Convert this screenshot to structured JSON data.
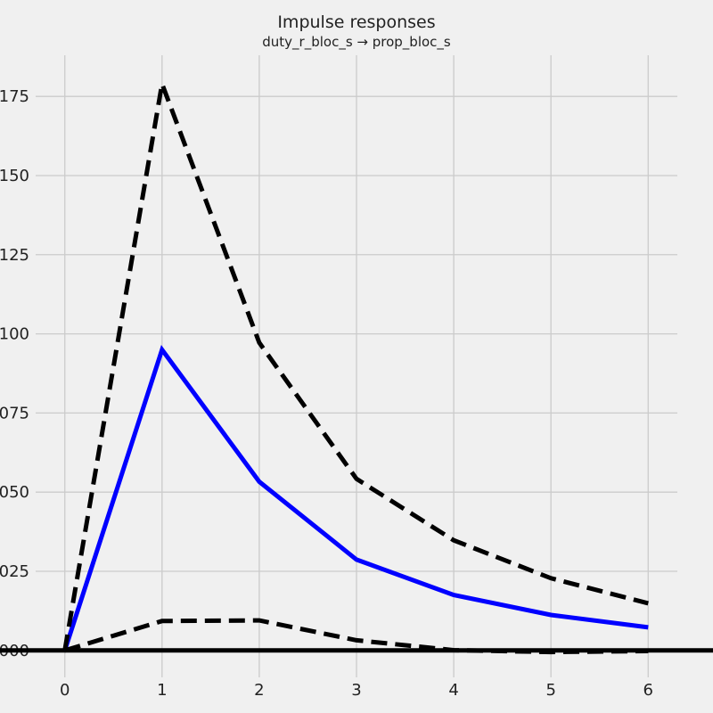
{
  "chart_data": {
    "type": "line",
    "title": "Impulse responses",
    "subtitle": "duty_r_bloc_s → prop_bloc_s",
    "x": [
      0,
      1,
      2,
      3,
      4,
      5,
      6
    ],
    "xticks": [
      "0",
      "1",
      "2",
      "3",
      "4",
      "5",
      "6"
    ],
    "yticks": [
      {
        "value": 0.0,
        "label": "000"
      },
      {
        "value": 0.025,
        "label": "025"
      },
      {
        "value": 0.05,
        "label": "050"
      },
      {
        "value": 0.075,
        "label": "075"
      },
      {
        "value": 0.1,
        "label": "100"
      },
      {
        "value": 0.125,
        "label": "125"
      },
      {
        "value": 0.15,
        "label": "150"
      },
      {
        "value": 0.175,
        "label": "175"
      }
    ],
    "xlim": [
      -0.3,
      6.3
    ],
    "ylim": [
      -0.0085,
      0.188
    ],
    "grid": true,
    "series": [
      {
        "role": "irf",
        "values": [
          0.0,
          0.095,
          0.0533,
          0.0287,
          0.0175,
          0.0112,
          0.0073
        ],
        "color": "#0000ff",
        "style": "solid"
      },
      {
        "role": "upper-band",
        "values": [
          0.0,
          0.179,
          0.0972,
          0.0542,
          0.0348,
          0.0228,
          0.0149
        ],
        "color": "#000000",
        "style": "dashed"
      },
      {
        "role": "lower-band",
        "values": [
          0.0,
          0.0093,
          0.0095,
          0.0032,
          0.0001,
          -0.0005,
          -0.0002
        ],
        "color": "#000000",
        "style": "dashed"
      }
    ],
    "zero_line": 0.0
  }
}
